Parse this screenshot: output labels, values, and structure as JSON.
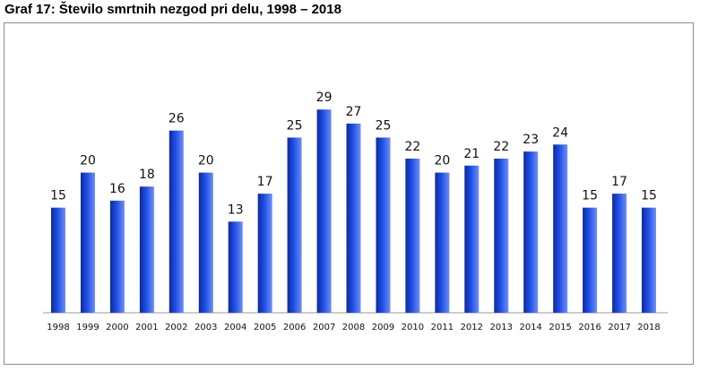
{
  "title": "Graf 17: Število smrtnih nezgod pri delu, 1998 – 2018",
  "chart_data": {
    "type": "bar",
    "title": "Graf 17: Število smrtnih nezgod pri delu, 1998 – 2018",
    "xlabel": "",
    "ylabel": "",
    "categories": [
      "1998",
      "1999",
      "2000",
      "2001",
      "2002",
      "2003",
      "2004",
      "2005",
      "2006",
      "2007",
      "2008",
      "2009",
      "2010",
      "2011",
      "2012",
      "2013",
      "2014",
      "2015",
      "2016",
      "2017",
      "2018"
    ],
    "values": [
      15,
      20,
      16,
      18,
      26,
      20,
      13,
      17,
      25,
      29,
      27,
      25,
      22,
      20,
      21,
      22,
      23,
      24,
      15,
      17,
      15
    ],
    "ylim": [
      0,
      35
    ],
    "grid": false,
    "legend": "none",
    "bar_color": "#1f4fe8",
    "bar_color_dark": "#0e2a9a",
    "bar_color_light": "#6f8ff5"
  }
}
